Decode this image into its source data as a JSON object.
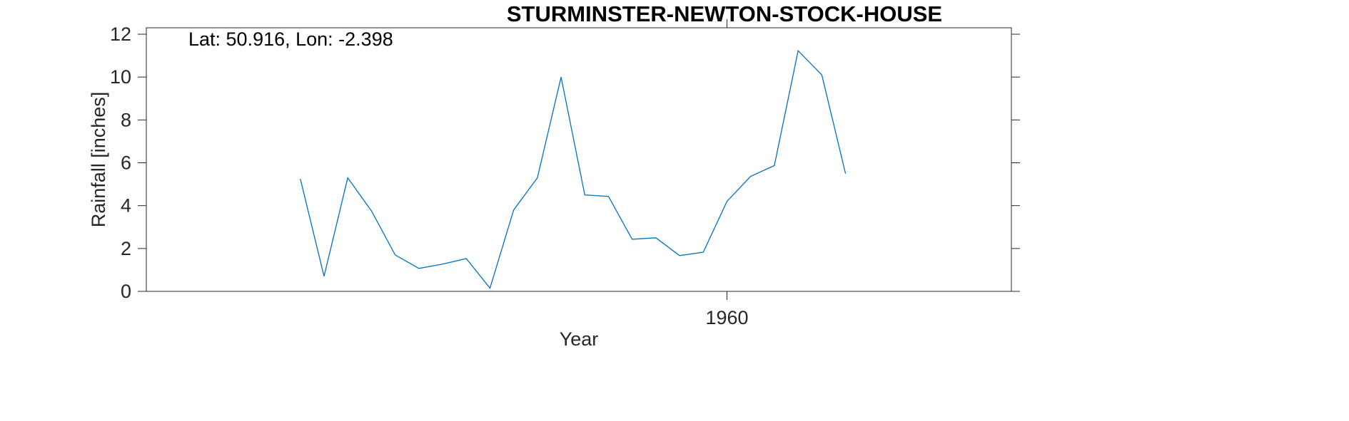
{
  "chart_data": {
    "type": "line",
    "title": "STURMINSTER-NEWTON-STOCK-HOUSE",
    "xlabel": "Year",
    "ylabel": "Rainfall [inches]",
    "annotation": "Lat: 50.916, Lon: -2.398",
    "xlim": [
      1935.5,
      1972
    ],
    "ylim": [
      0,
      12.3
    ],
    "x_ticks": [
      1960
    ],
    "y_ticks": [
      0,
      2,
      4,
      6,
      8,
      10,
      12
    ],
    "grid": false,
    "line_color": "#0072BD",
    "series": [
      {
        "x": [
          1942,
          1943,
          1944,
          1945,
          1946,
          1947,
          1948,
          1949,
          1950,
          1951,
          1952,
          1953,
          1954,
          1955,
          1956,
          1957,
          1958,
          1959,
          1960,
          1961,
          1962,
          1963,
          1964,
          1965
        ],
        "values": [
          5.25,
          0.7,
          5.3,
          3.75,
          1.7,
          1.07,
          1.27,
          1.53,
          0.15,
          3.8,
          5.3,
          10.0,
          4.5,
          4.43,
          2.43,
          2.5,
          1.67,
          1.83,
          4.2,
          5.37,
          5.87,
          11.23,
          10.1,
          5.5
        ]
      }
    ]
  }
}
